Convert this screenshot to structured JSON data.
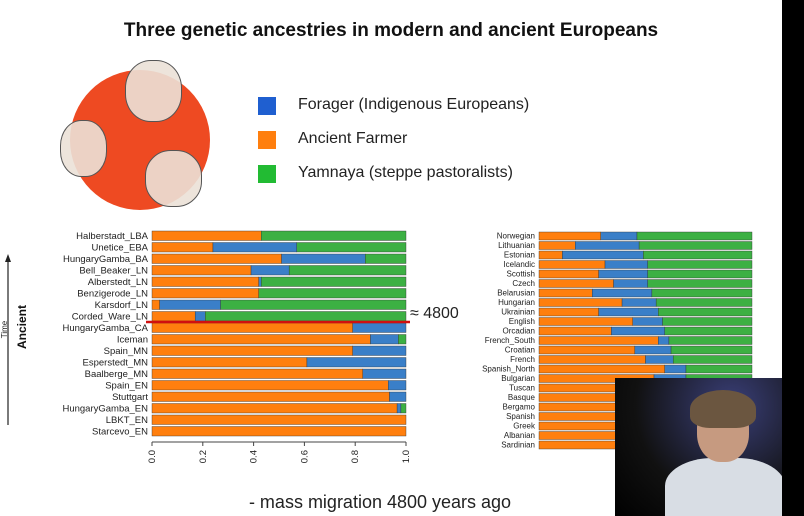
{
  "title": "Three genetic ancestries in modern and ancient Europeans",
  "legend": [
    {
      "label": "Forager (Indigenous Europeans)",
      "color": "#1f5fd0"
    },
    {
      "label": "Ancient Farmer",
      "color": "#ff7f0e"
    },
    {
      "label": "Yamnaya (steppe pastoralists)",
      "color": "#22bb33"
    }
  ],
  "side_labels": {
    "time": "Time",
    "ancient": "Ancient"
  },
  "annotation": "≈ 4800",
  "footer": "- mass migration 4800 years ago",
  "chart_data": [
    {
      "type": "bar",
      "orientation": "horizontal-stacked",
      "categories": [
        "Halberstadt_LBA",
        "Unetice_EBA",
        "HungaryGamba_BA",
        "Bell_Beaker_LN",
        "Alberstedt_LN",
        "Benzigerode_LN",
        "Karsdorf_LN",
        "Corded_Ware_LN",
        "HungaryGamba_CA",
        "Iceman",
        "Spain_MN",
        "Esperstedt_MN",
        "Baalberge_MN",
        "Spain_EN",
        "Stuttgart",
        "HungaryGamba_EN",
        "LBKT_EN",
        "Starcevo_EN"
      ],
      "series": [
        {
          "name": "Ancient Farmer",
          "color": "#ff7f0e",
          "values": [
            0.43,
            0.24,
            0.51,
            0.39,
            0.42,
            0.42,
            0.03,
            0.17,
            0.79,
            0.86,
            0.79,
            0.61,
            0.83,
            0.93,
            0.935,
            0.965,
            1.0,
            1.0
          ]
        },
        {
          "name": "Forager (Indigenous Europeans)",
          "color": "#3a7fc8",
          "values": [
            0.0,
            0.33,
            0.33,
            0.15,
            0.01,
            0.0,
            0.24,
            0.04,
            0.21,
            0.11,
            0.21,
            0.39,
            0.17,
            0.07,
            0.065,
            0.015,
            0.0,
            0.0
          ]
        },
        {
          "name": "Yamnaya (steppe pastoralists)",
          "color": "#3cb043",
          "values": [
            0.57,
            0.43,
            0.16,
            0.46,
            0.57,
            0.58,
            0.73,
            0.79,
            0.0,
            0.03,
            0.0,
            0.0,
            0.0,
            0.0,
            0.0,
            0.02,
            0.0,
            0.0
          ]
        }
      ],
      "xticks": [
        "0.0",
        "0.2",
        "0.4",
        "0.6",
        "0.8",
        "1.0"
      ],
      "xlim": [
        0,
        1
      ],
      "marker_line_after": "Corded_Ware_LN"
    },
    {
      "type": "bar",
      "orientation": "horizontal-stacked",
      "categories": [
        "Norwegian",
        "Lithuanian",
        "Estonian",
        "Icelandic",
        "Scottish",
        "Czech",
        "Belarusian",
        "Hungarian",
        "Ukrainian",
        "English",
        "Orcadian",
        "French_South",
        "Croatian",
        "French",
        "Spanish_North",
        "Bulgarian",
        "Tuscan",
        "Basque",
        "Bergamo",
        "Spanish",
        "Greek",
        "Albanian",
        "Sardinian"
      ],
      "series": [
        {
          "name": "Ancient Farmer",
          "color": "#ff7f0e",
          "values": [
            0.29,
            0.17,
            0.11,
            0.31,
            0.28,
            0.35,
            0.25,
            0.39,
            0.28,
            0.44,
            0.34,
            0.56,
            0.45,
            0.5,
            0.59,
            0.54,
            0.6,
            0.62,
            0.62,
            0.6,
            0.7,
            0.66,
            0.85
          ]
        },
        {
          "name": "Forager (Indigenous Europeans)",
          "color": "#3a7fc8",
          "values": [
            0.17,
            0.3,
            0.38,
            0.2,
            0.23,
            0.16,
            0.28,
            0.16,
            0.28,
            0.14,
            0.25,
            0.05,
            0.17,
            0.13,
            0.1,
            0.15,
            0.1,
            0.12,
            0.1,
            0.12,
            0.08,
            0.1,
            0.08
          ]
        },
        {
          "name": "Yamnaya (steppe pastoralists)",
          "color": "#3cb043",
          "values": [
            0.54,
            0.53,
            0.51,
            0.49,
            0.49,
            0.49,
            0.47,
            0.45,
            0.44,
            0.42,
            0.41,
            0.39,
            0.38,
            0.37,
            0.31,
            0.31,
            0.3,
            0.26,
            0.28,
            0.28,
            0.22,
            0.24,
            0.07
          ]
        }
      ],
      "xlim": [
        0,
        1
      ]
    }
  ]
}
